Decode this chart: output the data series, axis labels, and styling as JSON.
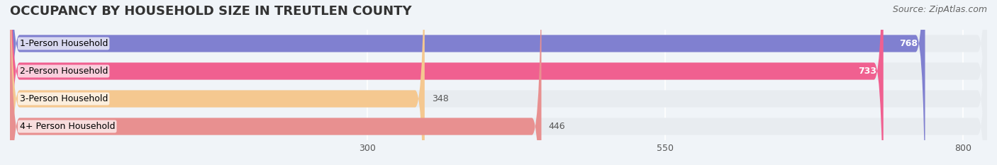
{
  "title": "OCCUPANCY BY HOUSEHOLD SIZE IN TREUTLEN COUNTY",
  "source": "Source: ZipAtlas.com",
  "categories": [
    "1-Person Household",
    "2-Person Household",
    "3-Person Household",
    "4+ Person Household"
  ],
  "values": [
    768,
    733,
    348,
    446
  ],
  "bar_colors": [
    "#8080d0",
    "#f06090",
    "#f5c890",
    "#e89090"
  ],
  "label_colors": [
    "white",
    "white",
    "black",
    "black"
  ],
  "xlim": [
    0,
    820
  ],
  "xticks": [
    300,
    550,
    800
  ],
  "background_color": "#f0f4f8",
  "bar_background_color": "#e8ecf0",
  "title_fontsize": 13,
  "source_fontsize": 9,
  "label_fontsize": 9,
  "value_fontsize": 9
}
